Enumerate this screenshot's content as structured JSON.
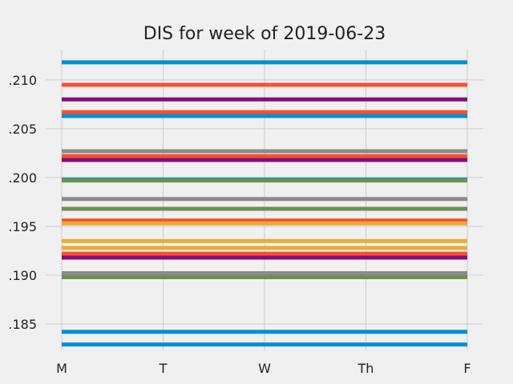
{
  "chart_data": {
    "type": "line",
    "title": "DIS for week of 2019-06-23",
    "xlabel": "",
    "ylabel": "",
    "categories": [
      "M",
      "T",
      "W",
      "Th",
      "F"
    ],
    "y_tick_labels": [
      ".185",
      ".190",
      ".195",
      ".200",
      ".205",
      ".210"
    ],
    "y_ticks": [
      0.185,
      0.19,
      0.195,
      0.2,
      0.205,
      0.21
    ],
    "ylim": [
      0.1823,
      0.2131
    ],
    "grid": true,
    "background": "#f0f0f0",
    "series": [
      {
        "color": "#008fd5",
        "values": [
          0.2118,
          0.2118,
          0.2118,
          0.2118,
          0.2118
        ]
      },
      {
        "color": "#fc4f30",
        "values": [
          0.2095,
          0.2095,
          0.2095,
          0.2095,
          0.2095
        ]
      },
      {
        "color": "#810f7c",
        "values": [
          0.208,
          0.208,
          0.208,
          0.208,
          0.208
        ]
      },
      {
        "color": "#fc4f30",
        "values": [
          0.2067,
          0.2067,
          0.2067,
          0.2067,
          0.2067
        ]
      },
      {
        "color": "#008fd5",
        "values": [
          0.2063,
          0.2063,
          0.2063,
          0.2063,
          0.2063
        ]
      },
      {
        "color": "#8b8b8b",
        "values": [
          0.2027,
          0.2027,
          0.2027,
          0.2027,
          0.2027
        ]
      },
      {
        "color": "#fc4f30",
        "values": [
          0.2022,
          0.2022,
          0.2022,
          0.2022,
          0.2022
        ]
      },
      {
        "color": "#810f7c",
        "values": [
          0.2018,
          0.2018,
          0.2018,
          0.2018,
          0.2018
        ]
      },
      {
        "color": "#008fd5",
        "values": [
          0.1998,
          0.1998,
          0.1998,
          0.1998,
          0.1998
        ]
      },
      {
        "color": "#6d904f",
        "values": [
          0.1997,
          0.1997,
          0.1997,
          0.1997,
          0.1997
        ]
      },
      {
        "color": "#8b8b8b",
        "values": [
          0.1978,
          0.1978,
          0.1978,
          0.1978,
          0.1978
        ]
      },
      {
        "color": "#6d904f",
        "values": [
          0.1968,
          0.1968,
          0.1968,
          0.1968,
          0.1968
        ]
      },
      {
        "color": "#fc4f30",
        "values": [
          0.1956,
          0.1956,
          0.1956,
          0.1956,
          0.1956
        ]
      },
      {
        "color": "#e5ae38",
        "values": [
          0.1953,
          0.1953,
          0.1953,
          0.1953,
          0.1953
        ]
      },
      {
        "color": "#e5ae38",
        "values": [
          0.1935,
          0.1935,
          0.1935,
          0.1935,
          0.1935
        ]
      },
      {
        "color": "#e5ae38",
        "values": [
          0.1928,
          0.1928,
          0.1928,
          0.1928,
          0.1928
        ]
      },
      {
        "color": "#fc4f30",
        "values": [
          0.1922,
          0.1922,
          0.1922,
          0.1922,
          0.1922
        ]
      },
      {
        "color": "#810f7c",
        "values": [
          0.1918,
          0.1918,
          0.1918,
          0.1918,
          0.1918
        ]
      },
      {
        "color": "#8b8b8b",
        "values": [
          0.1902,
          0.1902,
          0.1902,
          0.1902,
          0.1902
        ]
      },
      {
        "color": "#6d904f",
        "values": [
          0.1898,
          0.1898,
          0.1898,
          0.1898,
          0.1898
        ]
      },
      {
        "color": "#008fd5",
        "values": [
          0.1842,
          0.1842,
          0.1842,
          0.1842,
          0.1842
        ]
      },
      {
        "color": "#008fd5",
        "values": [
          0.1829,
          0.1829,
          0.1829,
          0.1829,
          0.1829
        ]
      }
    ]
  }
}
